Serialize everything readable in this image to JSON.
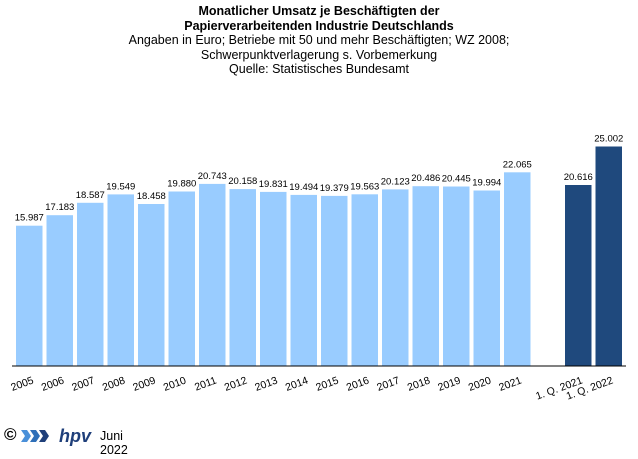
{
  "title": {
    "line1": "Monatlicher Umsatz je Beschäftigten der",
    "line2": "Papierverarbeitenden Industrie Deutschlands",
    "line3": "Angaben  in Euro; Betriebe mit 50 und mehr Beschäftigten; WZ 2008;",
    "line4": "Schwerpunktverlagerung  s. Vorbemerkung",
    "line5": "Quelle: Statistisches Bundesamt"
  },
  "footer": {
    "copyright": "©",
    "brand": "hpv",
    "date": "Juni 2022",
    "logo_icon": "hpv-arrows-logo-icon"
  },
  "colors": {
    "annual": "#99ccff",
    "quarter": "#1f497d",
    "axis": "#000000"
  },
  "chart_data": {
    "type": "bar",
    "title": "Monatlicher Umsatz je Beschäftigten der Papierverarbeitenden Industrie Deutschlands",
    "categories": [
      "2005",
      "2006",
      "2007",
      "2008",
      "2009",
      "2010",
      "2011",
      "2012",
      "2013",
      "2014",
      "2015",
      "2016",
      "2017",
      "2018",
      "2019",
      "2020",
      "2021",
      "",
      "1. Q. 2021",
      "1. Q. 2022"
    ],
    "values": [
      15987,
      17183,
      18587,
      19549,
      18458,
      19880,
      20743,
      20158,
      19831,
      19494,
      19379,
      19563,
      20123,
      20486,
      20445,
      19994,
      22065,
      null,
      20616,
      25002
    ],
    "value_labels": [
      "15.987",
      "17.183",
      "18.587",
      "19.549",
      "18.458",
      "19.880",
      "20.743",
      "20.158",
      "19.831",
      "19.494",
      "19.379",
      "19.563",
      "20.123",
      "20.486",
      "20.445",
      "19.994",
      "22.065",
      "",
      "20.616",
      "25.002"
    ],
    "bar_groups": [
      "annual",
      "annual",
      "annual",
      "annual",
      "annual",
      "annual",
      "annual",
      "annual",
      "annual",
      "annual",
      "annual",
      "annual",
      "annual",
      "annual",
      "annual",
      "annual",
      "annual",
      "gap",
      "quarter",
      "quarter"
    ],
    "ylim": [
      0,
      27000
    ],
    "xlabel": "",
    "ylabel": "",
    "grid": false,
    "legend": "none"
  }
}
